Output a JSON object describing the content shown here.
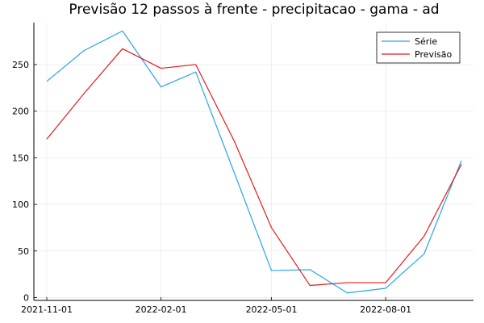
{
  "chart_data": {
    "type": "line",
    "title": "Previsão 12 passos à frente - precipitacao - gama - ad",
    "xlabel": "",
    "ylabel": "",
    "x": [
      "2021-11-01",
      "2021-12-01",
      "2022-01-01",
      "2022-02-01",
      "2022-03-01",
      "2022-04-01",
      "2022-05-01",
      "2022-06-01",
      "2022-07-01",
      "2022-08-01",
      "2022-09-01",
      "2022-10-01"
    ],
    "x_ticks": [
      "2021-11-01",
      "2022-02-01",
      "2022-05-01",
      "2022-08-01"
    ],
    "y_ticks": [
      0,
      50,
      100,
      150,
      200,
      250
    ],
    "ylim": [
      -3,
      295
    ],
    "grid": true,
    "legend_position": "top-right",
    "series": [
      {
        "name": "Série",
        "color": "#2aa4e8",
        "values": [
          232,
          265,
          286,
          226,
          242,
          134,
          29,
          30,
          5,
          10,
          47,
          147
        ]
      },
      {
        "name": "Previsão",
        "color": "#e41a1c",
        "values": [
          170,
          219,
          267,
          246,
          250,
          168,
          75,
          13,
          16,
          16,
          66,
          143
        ]
      }
    ]
  }
}
